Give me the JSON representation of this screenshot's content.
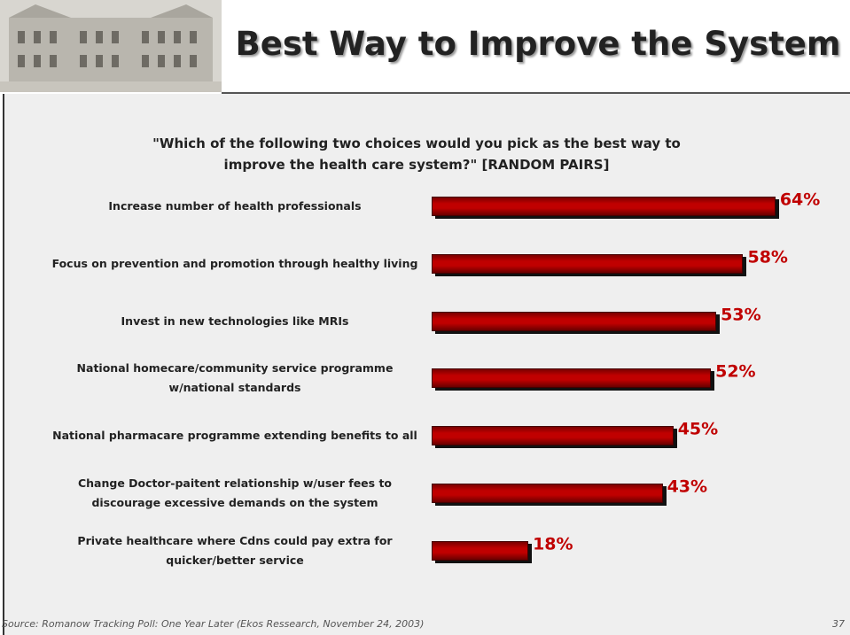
{
  "chart_data": {
    "type": "bar",
    "orientation": "horizontal",
    "title": "Best Way to Improve the System",
    "subtitle": "\"Which of the following two choices would you pick as the best way to improve the health care system?\" [RANDOM PAIRS]",
    "categories": [
      "Increase number of health professionals",
      "Focus on prevention and promotion through healthy living",
      "Invest in new technologies like MRIs",
      "National homecare/community service programme w/national standards",
      "National pharmacare programme extending benefits to all",
      "Change Doctor-paitent relationship w/user fees to discourage excessive demands on the system",
      "Private healthcare where Cdns could pay extra for quicker/better service"
    ],
    "values": [
      64,
      58,
      53,
      52,
      45,
      43,
      18
    ],
    "value_labels": [
      "64%",
      "58%",
      "53%",
      "52%",
      "45%",
      "43%",
      "18%"
    ],
    "color": "#c00000",
    "source": "Source: Romanow Tracking Poll:  One Year Later (Ekos Ressearch, November 24, 2003)",
    "page_number": "37"
  }
}
